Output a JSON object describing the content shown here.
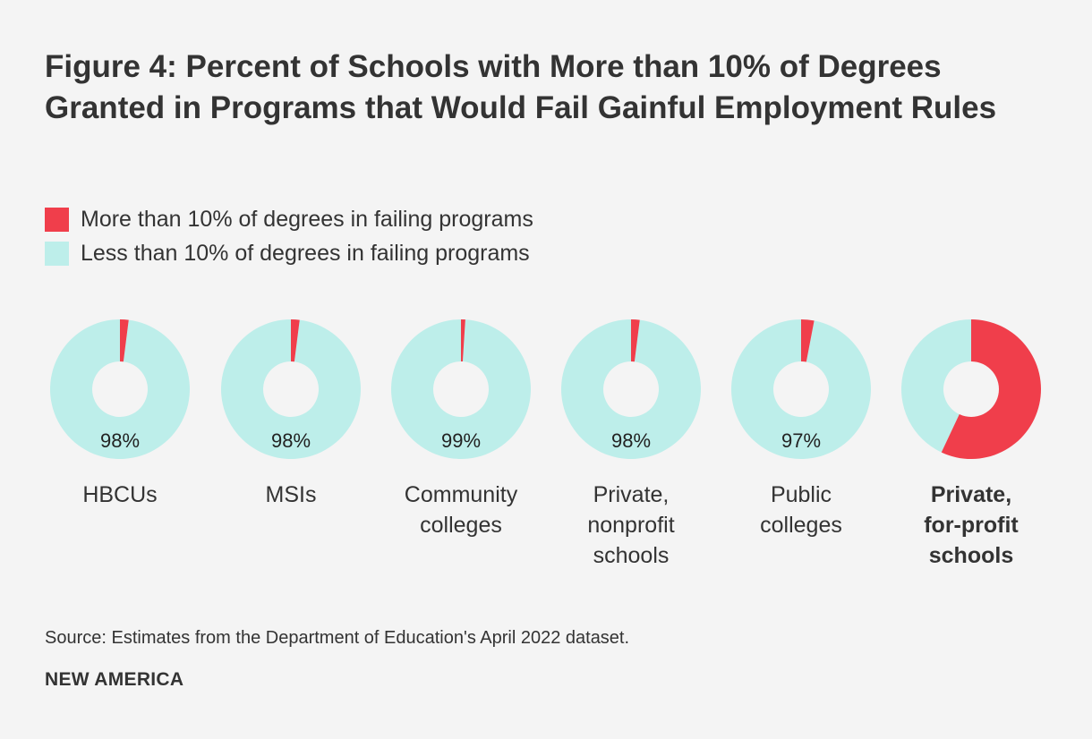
{
  "title": "Figure 4: Percent of Schools with More than 10% of Degrees Granted in Programs that Would Fail Gainful Employment Rules",
  "legend": {
    "items": [
      {
        "label": "More than 10% of degrees in failing programs",
        "color": "#f03e4b"
      },
      {
        "label": "Less than 10% of degrees in failing programs",
        "color": "#bdeeea"
      }
    ]
  },
  "chart_data": {
    "type": "pie",
    "title": "Figure 4: Percent of Schools with More than 10% of Degrees Granted in Programs that Would Fail Gainful Employment Rules",
    "series_names": [
      "More than 10% of degrees in failing programs",
      "Less than 10% of degrees in failing programs"
    ],
    "colors": {
      "more": "#f03e4b",
      "less": "#bdeeea"
    },
    "categories": [
      {
        "label": "HBCUs",
        "more_pct": 2,
        "less_pct": 98,
        "data_label": "98%",
        "bold": false
      },
      {
        "label": "MSIs",
        "more_pct": 2,
        "less_pct": 98,
        "data_label": "98%",
        "bold": false
      },
      {
        "label": "Community colleges",
        "more_pct": 1,
        "less_pct": 99,
        "data_label": "99%",
        "bold": false
      },
      {
        "label": "Private, nonprofit schools",
        "more_pct": 2,
        "less_pct": 98,
        "data_label": "98%",
        "bold": false
      },
      {
        "label": "Public colleges",
        "more_pct": 3,
        "less_pct": 97,
        "data_label": "97%",
        "bold": false
      },
      {
        "label": "Private, for-profit schools",
        "more_pct": 57,
        "less_pct": 43,
        "data_label": "",
        "bold": true
      }
    ]
  },
  "source": "Source: Estimates from the Department of Education's April 2022 dataset.",
  "brand": "NEW AMERICA"
}
